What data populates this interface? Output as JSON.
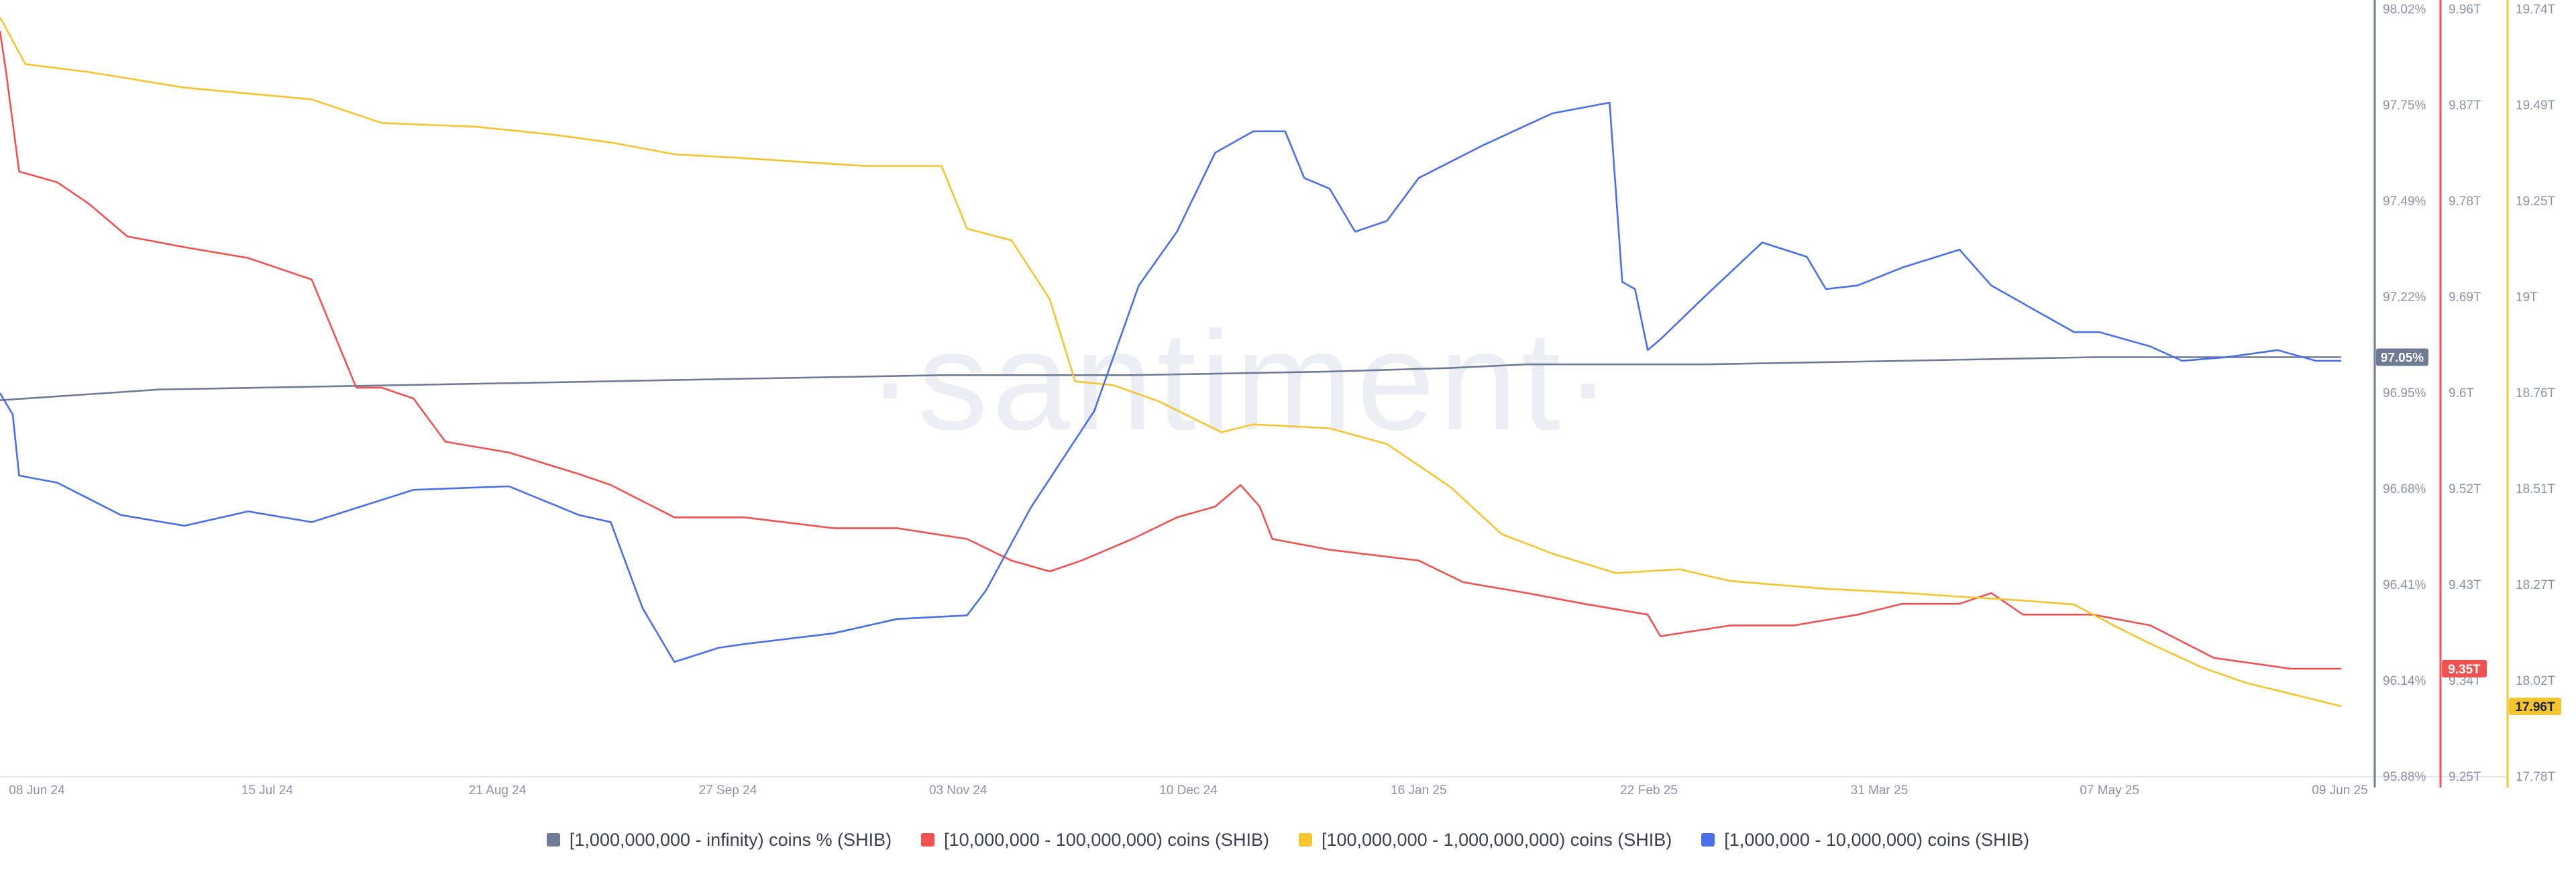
{
  "watermark": "·santiment·",
  "chart_data": {
    "type": "line",
    "x_ticks": [
      "08 Jun 24",
      "15 Jul 24",
      "21 Aug 24",
      "27 Sep 24",
      "03 Nov 24",
      "10 Dec 24",
      "16 Jan 25",
      "22 Feb 25",
      "31 Mar 25",
      "07 May 25",
      "09 Jun 25"
    ],
    "x_domain": [
      "2024-06-06",
      "2025-06-09"
    ],
    "grid": false,
    "legend_position": "bottom",
    "axes": [
      {
        "id": "pct",
        "color": "#6f7a96",
        "range": [
          95.88,
          98.02
        ],
        "tick_labels": [
          "98.02%",
          "97.75%",
          "97.49%",
          "97.22%",
          "96.95%",
          "96.68%",
          "96.41%",
          "96.14%",
          "95.88%"
        ]
      },
      {
        "id": "red",
        "color": "#f05252",
        "range": [
          9.25,
          9.96
        ],
        "tick_labels": [
          "9.96T",
          "9.87T",
          "9.78T",
          "9.69T",
          "9.6T",
          "9.52T",
          "9.43T",
          "9.34T",
          "9.25T"
        ]
      },
      {
        "id": "yellow",
        "color": "#f5c431",
        "range": [
          17.78,
          19.74
        ],
        "tick_labels": [
          "19.74T",
          "19.49T",
          "19.25T",
          "19T",
          "18.76T",
          "18.51T",
          "18.27T",
          "18.02T",
          "17.78T"
        ]
      }
    ],
    "series": [
      {
        "name": "[1,000,000,000 - infinity) coins % (SHIB)",
        "color": "#6f7a96",
        "axis": "pct",
        "last_label": "97.05%",
        "x": [
          "2024-06-06",
          "2024-07-01",
          "2024-08-01",
          "2024-09-01",
          "2024-10-01",
          "2024-11-01",
          "2024-11-20",
          "2024-12-01",
          "2025-01-01",
          "2025-01-20",
          "2025-02-01",
          "2025-02-20",
          "2025-03-01",
          "2025-04-01",
          "2025-05-01",
          "2025-06-09"
        ],
        "values": [
          96.93,
          96.96,
          96.97,
          96.98,
          96.99,
          97.0,
          97.0,
          97.0,
          97.01,
          97.02,
          97.03,
          97.03,
          97.03,
          97.04,
          97.05,
          97.05
        ]
      },
      {
        "name": "[10,000,000 - 100,000,000) coins (SHIB)",
        "color": "#f05252",
        "axis": "red",
        "last_label": "9.35T",
        "x": [
          "2024-06-06",
          "2024-06-07",
          "2024-06-09",
          "2024-06-15",
          "2024-06-20",
          "2024-06-26",
          "2024-07-05",
          "2024-07-15",
          "2024-07-25",
          "2024-08-01",
          "2024-08-05",
          "2024-08-10",
          "2024-08-15",
          "2024-08-25",
          "2024-09-05",
          "2024-09-10",
          "2024-09-20",
          "2024-10-01",
          "2024-10-15",
          "2024-10-25",
          "2024-11-05",
          "2024-11-12",
          "2024-11-18",
          "2024-11-23",
          "2024-12-01",
          "2024-12-08",
          "2024-12-14",
          "2024-12-18",
          "2024-12-21",
          "2024-12-23",
          "2025-01-01",
          "2025-01-15",
          "2025-01-22",
          "2025-02-01",
          "2025-02-10",
          "2025-02-20",
          "2025-02-22",
          "2025-03-05",
          "2025-03-15",
          "2025-03-25",
          "2025-04-01",
          "2025-04-10",
          "2025-04-15",
          "2025-04-20",
          "2025-05-01",
          "2025-05-10",
          "2025-05-20",
          "2025-06-01",
          "2025-06-09"
        ],
        "values": [
          9.94,
          9.9,
          9.81,
          9.8,
          9.78,
          9.75,
          9.74,
          9.73,
          9.71,
          9.61,
          9.61,
          9.6,
          9.56,
          9.55,
          9.53,
          9.52,
          9.49,
          9.49,
          9.48,
          9.48,
          9.47,
          9.45,
          9.44,
          9.45,
          9.47,
          9.49,
          9.5,
          9.52,
          9.5,
          9.47,
          9.46,
          9.45,
          9.43,
          9.42,
          9.41,
          9.4,
          9.38,
          9.39,
          9.39,
          9.4,
          9.41,
          9.41,
          9.42,
          9.4,
          9.4,
          9.39,
          9.36,
          9.35,
          9.35
        ]
      },
      {
        "name": "[100,000,000 - 1,000,000,000) coins (SHIB)",
        "color": "#f5c431",
        "axis": "yellow",
        "last_label": "17.96T",
        "x": [
          "2024-06-06",
          "2024-06-10",
          "2024-06-20",
          "2024-07-05",
          "2024-07-25",
          "2024-08-05",
          "2024-08-20",
          "2024-09-01",
          "2024-09-10",
          "2024-09-20",
          "2024-10-01",
          "2024-10-20",
          "2024-11-01",
          "2024-11-05",
          "2024-11-12",
          "2024-11-18",
          "2024-11-22",
          "2024-11-28",
          "2024-12-05",
          "2024-12-15",
          "2024-12-20",
          "2025-01-01",
          "2025-01-10",
          "2025-01-20",
          "2025-01-28",
          "2025-02-05",
          "2025-02-15",
          "2025-02-25",
          "2025-03-05",
          "2025-03-20",
          "2025-04-01",
          "2025-04-10",
          "2025-04-20",
          "2025-04-28",
          "2025-05-05",
          "2025-05-10",
          "2025-05-18",
          "2025-05-25",
          "2025-06-09"
        ],
        "values": [
          19.72,
          19.6,
          19.58,
          19.54,
          19.51,
          19.45,
          19.44,
          19.42,
          19.4,
          19.37,
          19.36,
          19.34,
          19.34,
          19.18,
          19.15,
          19.0,
          18.79,
          18.78,
          18.74,
          18.66,
          18.68,
          18.67,
          18.63,
          18.52,
          18.4,
          18.35,
          18.3,
          18.31,
          18.28,
          18.26,
          18.25,
          18.24,
          18.23,
          18.22,
          18.16,
          18.12,
          18.06,
          18.02,
          17.96
        ]
      },
      {
        "name": "[1,000,000 - 10,000,000) coins (SHIB)",
        "color": "#4b6fe8",
        "axis": "pct",
        "last_label": "",
        "x": [
          "2024-06-06",
          "2024-06-08",
          "2024-06-09",
          "2024-06-15",
          "2024-06-25",
          "2024-07-05",
          "2024-07-15",
          "2024-07-25",
          "2024-08-10",
          "2024-08-25",
          "2024-09-05",
          "2024-09-10",
          "2024-09-15",
          "2024-09-20",
          "2024-09-27",
          "2024-10-01",
          "2024-10-15",
          "2024-10-25",
          "2024-11-05",
          "2024-11-08",
          "2024-11-15",
          "2024-11-25",
          "2024-12-02",
          "2024-12-08",
          "2024-12-14",
          "2024-12-20",
          "2024-12-25",
          "2024-12-28",
          "2025-01-01",
          "2025-01-05",
          "2025-01-10",
          "2025-01-15",
          "2025-01-25",
          "2025-02-05",
          "2025-02-14",
          "2025-02-16",
          "2025-02-18",
          "2025-02-20",
          "2025-02-22",
          "2025-03-01",
          "2025-03-10",
          "2025-03-17",
          "2025-03-20",
          "2025-03-25",
          "2025-04-01",
          "2025-04-10",
          "2025-04-15",
          "2025-04-20",
          "2025-04-28",
          "2025-05-02",
          "2025-05-10",
          "2025-05-15",
          "2025-05-22",
          "2025-05-30",
          "2025-06-05",
          "2025-06-09"
        ],
        "values": [
          96.95,
          96.89,
          96.72,
          96.7,
          96.61,
          96.58,
          96.62,
          96.59,
          96.68,
          96.69,
          96.61,
          96.59,
          96.35,
          96.2,
          96.24,
          96.25,
          96.28,
          96.32,
          96.33,
          96.4,
          96.63,
          96.9,
          97.25,
          97.4,
          97.62,
          97.68,
          97.68,
          97.55,
          97.52,
          97.4,
          97.43,
          97.55,
          97.64,
          97.73,
          97.76,
          97.26,
          97.24,
          97.07,
          97.1,
          97.22,
          97.37,
          97.33,
          97.24,
          97.25,
          97.3,
          97.35,
          97.25,
          97.2,
          97.12,
          97.12,
          97.08,
          97.04,
          97.05,
          97.07,
          97.04,
          97.04
        ]
      }
    ]
  }
}
